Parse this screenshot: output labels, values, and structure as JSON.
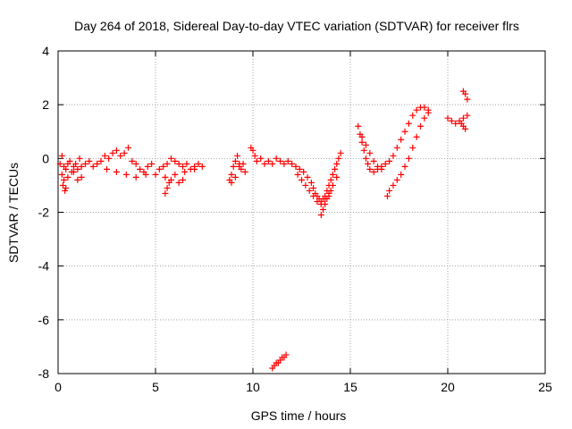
{
  "chart_data": {
    "type": "scatter",
    "title": "Day 264 of 2018, Sidereal Day-to-day VTEC variation (SDTVAR) for receiver flrs",
    "xlabel": "GPS time / hours",
    "ylabel": "SDTVAR / TECUs",
    "xlim": [
      0,
      25
    ],
    "ylim": [
      -8,
      4
    ],
    "xticks": [
      0,
      5,
      10,
      15,
      20,
      25
    ],
    "xtick_labels": [
      "0",
      "5",
      "10",
      "15",
      "20",
      "25"
    ],
    "yticks": [
      -8,
      -6,
      -4,
      -2,
      0,
      2,
      4
    ],
    "ytick_labels": [
      "-8",
      "-6",
      "-4",
      "-2",
      "0",
      "2",
      "4"
    ],
    "grid": true,
    "marker": "plus",
    "color": "#ff0000",
    "series": [
      {
        "name": "SDTVAR",
        "x": [
          0.1,
          0.2,
          0.3,
          0.4,
          0.5,
          0.6,
          0.7,
          0.8,
          0.9,
          1.0,
          1.1,
          1.2,
          1.4,
          1.6,
          1.8,
          2.0,
          2.2,
          2.4,
          2.6,
          2.8,
          3.0,
          3.2,
          3.4,
          3.6,
          3.8,
          4.0,
          4.2,
          4.4,
          4.6,
          4.8,
          5.0,
          5.2,
          5.4,
          5.6,
          5.8,
          6.0,
          6.2,
          6.4,
          6.6,
          6.8,
          7.0,
          7.2,
          7.4,
          0.2,
          0.3,
          0.5,
          0.8,
          1.0,
          1.2,
          2.5,
          3.0,
          3.5,
          4.0,
          4.5,
          5.5,
          6.0,
          6.5,
          7.0,
          0.25,
          0.35,
          0.4,
          5.5,
          5.6,
          5.7,
          5.8,
          6.2,
          6.4,
          8.8,
          8.9,
          9.0,
          9.1,
          9.2,
          9.3,
          9.4,
          9.5,
          9.6,
          8.9,
          9.1,
          9.3,
          9.9,
          10.0,
          10.1,
          10.2,
          10.4,
          10.6,
          10.8,
          11.0,
          11.2,
          11.4,
          11.6,
          11.8,
          12.0,
          12.2,
          12.4,
          12.6,
          12.8,
          13.0,
          13.1,
          13.2,
          13.3,
          13.4,
          13.5,
          13.6,
          13.7,
          13.8,
          13.9,
          14.0,
          14.1,
          14.2,
          14.3,
          14.4,
          14.5,
          12.3,
          12.5,
          12.7,
          12.9,
          13.1,
          13.3,
          13.5,
          13.7,
          13.9,
          14.1,
          14.3,
          13.5,
          13.6,
          13.7,
          13.8,
          13.9,
          14.0,
          11.0,
          11.1,
          11.2,
          11.3,
          11.4,
          11.5,
          11.6,
          11.7,
          15.4,
          15.5,
          15.6,
          15.7,
          15.8,
          15.9,
          16.0,
          16.2,
          16.4,
          16.6,
          16.8,
          17.0,
          17.2,
          17.4,
          17.6,
          17.8,
          18.0,
          18.2,
          18.4,
          18.6,
          18.8,
          19.0,
          16.9,
          17.0,
          17.2,
          17.4,
          17.6,
          17.8,
          18.0,
          18.2,
          18.4,
          18.6,
          18.8,
          19.0,
          15.6,
          15.8,
          16.0,
          16.2,
          16.4,
          16.6,
          20.0,
          20.2,
          20.4,
          20.6,
          20.8,
          21.0,
          20.8,
          20.9,
          21.0,
          20.7,
          20.8,
          20.9
        ],
        "y": [
          -0.2,
          0.1,
          -0.3,
          -0.4,
          -0.2,
          -0.1,
          -0.5,
          -0.3,
          -0.2,
          -0.4,
          0.0,
          -0.3,
          -0.2,
          -0.1,
          -0.3,
          -0.2,
          -0.1,
          0.1,
          0.0,
          0.2,
          0.3,
          0.1,
          0.2,
          0.4,
          -0.1,
          -0.2,
          -0.4,
          -0.5,
          -0.3,
          -0.2,
          -0.6,
          -0.4,
          -0.3,
          -0.2,
          0.0,
          -0.1,
          -0.2,
          -0.3,
          -0.2,
          -0.4,
          -0.3,
          -0.2,
          -0.3,
          -0.6,
          -0.8,
          -0.7,
          -0.5,
          -0.8,
          -0.7,
          -0.4,
          -0.5,
          -0.6,
          -0.7,
          -0.6,
          -0.7,
          -0.6,
          -0.5,
          -0.4,
          -1.0,
          -1.2,
          -1.1,
          -1.3,
          -1.1,
          -0.9,
          -0.8,
          -0.9,
          -0.8,
          -0.8,
          -0.6,
          -0.3,
          -0.1,
          0.1,
          -0.2,
          -0.4,
          -0.2,
          -0.5,
          -0.9,
          -0.7,
          -0.3,
          0.4,
          0.3,
          0.1,
          -0.1,
          0.0,
          -0.2,
          -0.1,
          -0.2,
          0.0,
          -0.1,
          -0.2,
          -0.1,
          -0.2,
          -0.3,
          -0.4,
          -0.5,
          -0.7,
          -0.9,
          -1.1,
          -1.3,
          -1.4,
          -1.5,
          -1.6,
          -1.5,
          -1.4,
          -1.2,
          -1.0,
          -0.8,
          -0.6,
          -0.4,
          -0.2,
          0.0,
          0.2,
          -0.6,
          -0.8,
          -1.0,
          -1.2,
          -1.4,
          -1.6,
          -1.7,
          -1.5,
          -1.3,
          -1.0,
          -0.7,
          -2.1,
          -1.9,
          -1.7,
          -1.5,
          -1.4,
          -1.2,
          -7.8,
          -7.7,
          -7.6,
          -7.6,
          -7.5,
          -7.4,
          -7.4,
          -7.3,
          1.2,
          0.9,
          0.6,
          0.3,
          0.0,
          -0.2,
          -0.4,
          -0.5,
          -0.4,
          -0.3,
          -0.2,
          -0.1,
          0.1,
          0.4,
          0.7,
          1.0,
          1.3,
          1.6,
          1.8,
          1.9,
          1.9,
          1.8,
          -1.4,
          -1.2,
          -1.0,
          -0.8,
          -0.6,
          -0.3,
          0.0,
          0.4,
          0.8,
          1.2,
          1.5,
          1.7,
          0.8,
          0.5,
          0.2,
          -0.1,
          -0.3,
          -0.4,
          1.5,
          1.4,
          1.3,
          1.4,
          1.5,
          1.6,
          2.5,
          2.4,
          2.2,
          1.3,
          1.2,
          1.1
        ]
      }
    ]
  }
}
